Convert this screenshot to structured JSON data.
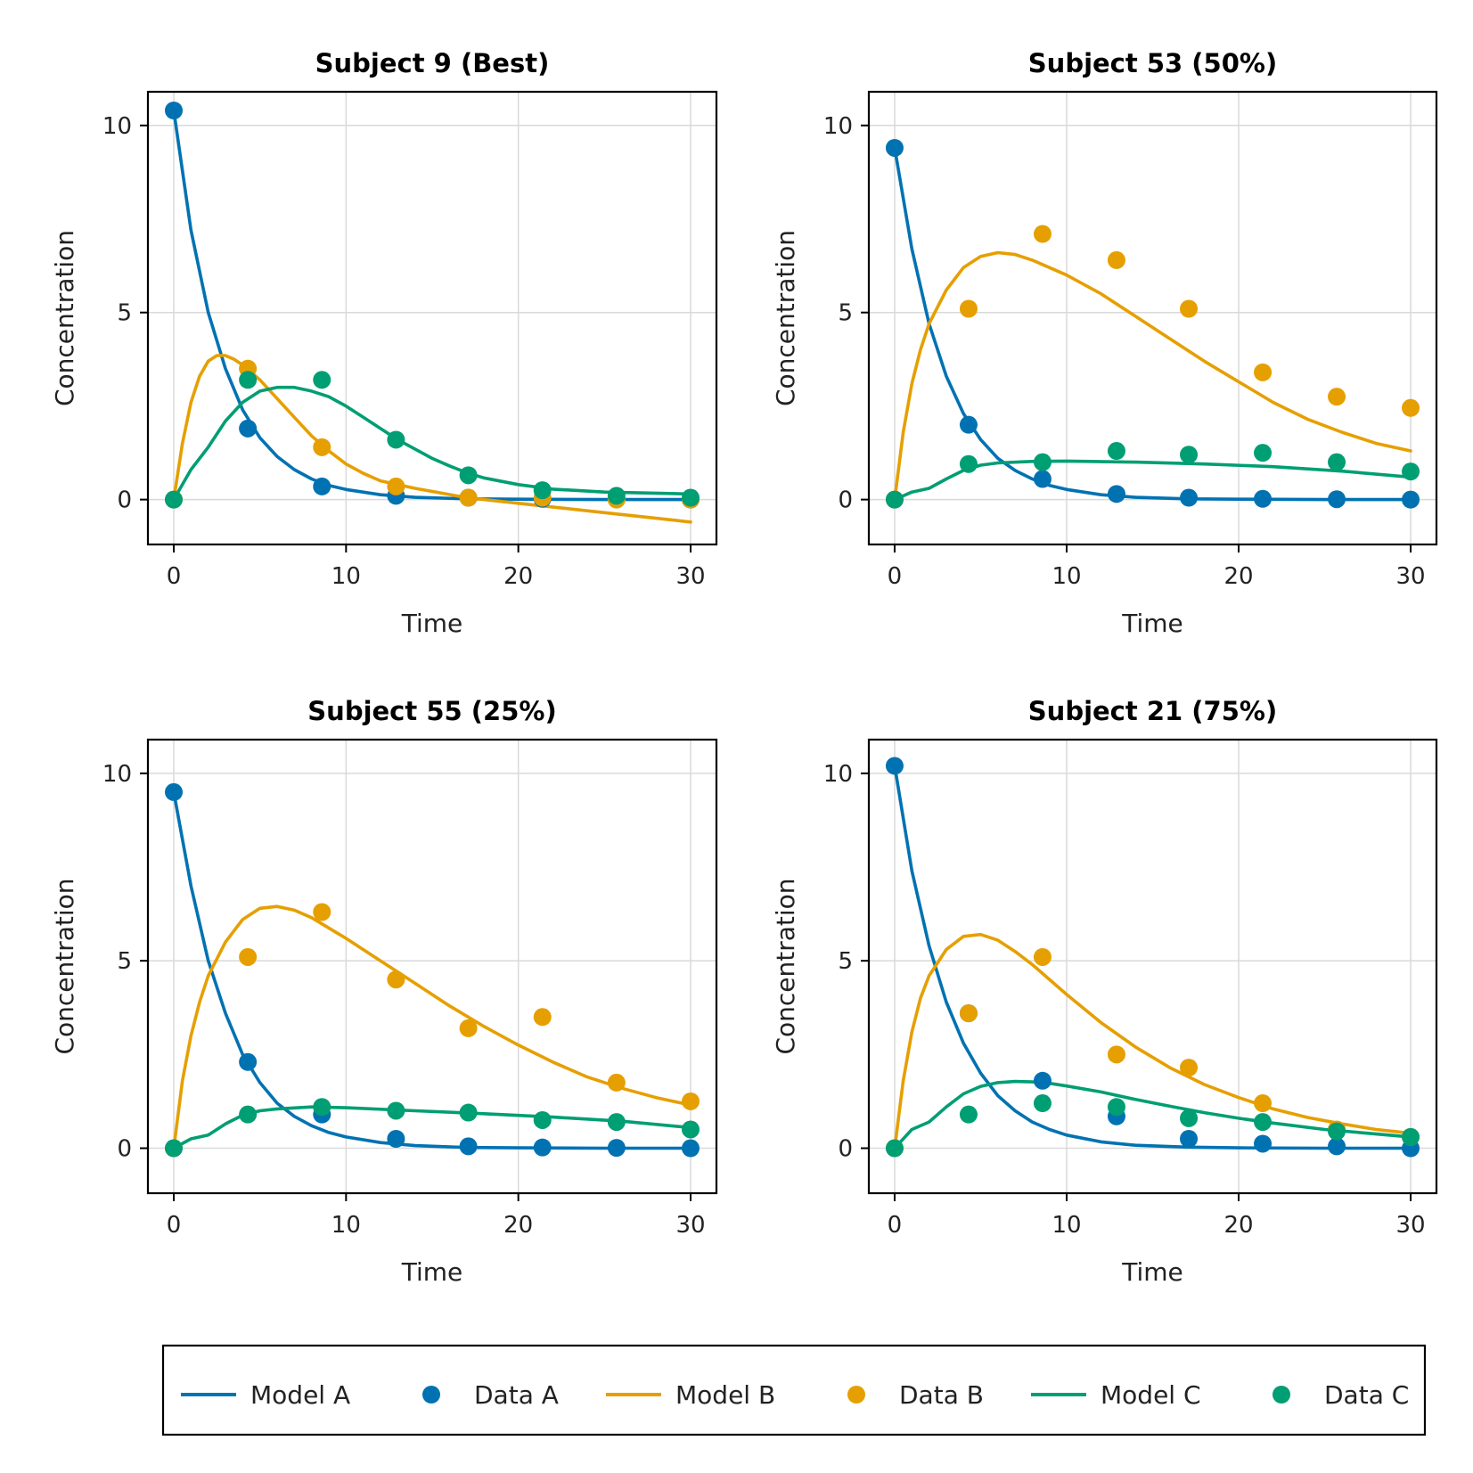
{
  "colors": {
    "A": "#0072B2",
    "B": "#E69F00",
    "C": "#009E73",
    "grid": "#d9d9d9",
    "frame": "#000000"
  },
  "legend": {
    "placement": "bottom",
    "items": [
      {
        "label": "Model A",
        "kind": "line",
        "color": "#0072B2"
      },
      {
        "label": "Data A",
        "kind": "marker",
        "color": "#0072B2"
      },
      {
        "label": "Model B",
        "kind": "line",
        "color": "#E69F00"
      },
      {
        "label": "Data B",
        "kind": "marker",
        "color": "#E69F00"
      },
      {
        "label": "Model C",
        "kind": "line",
        "color": "#009E73"
      },
      {
        "label": "Data C",
        "kind": "marker",
        "color": "#009E73"
      }
    ]
  },
  "chart_data": [
    {
      "type": "line",
      "title": "Subject 9 (Best)",
      "xlabel": "Time",
      "ylabel": "Concentration",
      "xlim": [
        -1.5,
        31.5
      ],
      "ylim": [
        -1.2,
        10.9
      ],
      "xticks": [
        0,
        10,
        20,
        30
      ],
      "yticks": [
        0,
        5,
        10
      ],
      "grid": true,
      "data_x": [
        0,
        4.3,
        8.6,
        12.9,
        17.1,
        21.4,
        25.7,
        30
      ],
      "series": [
        {
          "name": "Model A",
          "kind": "line",
          "color": "#0072B2",
          "x": [
            0,
            1,
            2,
            3,
            4,
            5,
            6,
            7,
            8,
            9,
            10,
            12,
            14,
            17,
            20,
            25,
            30
          ],
          "y": [
            10.4,
            7.2,
            5.0,
            3.5,
            2.4,
            1.65,
            1.15,
            0.8,
            0.55,
            0.38,
            0.27,
            0.13,
            0.06,
            0.02,
            0.01,
            0.0,
            0.0
          ]
        },
        {
          "name": "Data A",
          "kind": "scatter",
          "color": "#0072B2",
          "y": [
            10.4,
            1.9,
            0.35,
            0.1,
            0.05,
            0.02,
            0.01,
            0.0
          ]
        },
        {
          "name": "Model B",
          "kind": "line",
          "color": "#E69F00",
          "x": [
            0,
            0.5,
            1,
            1.5,
            2,
            2.5,
            3,
            3.5,
            4,
            5,
            6,
            7,
            8,
            9,
            10,
            11,
            12,
            14,
            17,
            20,
            25,
            30
          ],
          "y": [
            0,
            1.5,
            2.6,
            3.3,
            3.7,
            3.85,
            3.85,
            3.75,
            3.6,
            3.2,
            2.7,
            2.2,
            1.7,
            1.3,
            0.95,
            0.7,
            0.5,
            0.3,
            0.05,
            -0.1,
            -0.35,
            -0.6
          ]
        },
        {
          "name": "Data B",
          "kind": "scatter",
          "color": "#E69F00",
          "y": [
            0,
            3.5,
            1.4,
            0.35,
            0.05,
            0.05,
            0.0,
            0.0
          ]
        },
        {
          "name": "Model C",
          "kind": "line",
          "color": "#009E73",
          "x": [
            0,
            1,
            2,
            3,
            4,
            5,
            6,
            7,
            8,
            9,
            10,
            11,
            12,
            13,
            14,
            15,
            16,
            17,
            18,
            20,
            22,
            25,
            30
          ],
          "y": [
            0,
            0.8,
            1.4,
            2.1,
            2.6,
            2.9,
            3.0,
            3.0,
            2.9,
            2.75,
            2.5,
            2.2,
            1.9,
            1.6,
            1.35,
            1.1,
            0.9,
            0.72,
            0.58,
            0.4,
            0.28,
            0.2,
            0.15
          ]
        },
        {
          "name": "Data C",
          "kind": "scatter",
          "color": "#009E73",
          "y": [
            0,
            3.2,
            3.2,
            1.6,
            0.65,
            0.25,
            0.1,
            0.05
          ]
        }
      ]
    },
    {
      "type": "line",
      "title": "Subject 53 (50%)",
      "xlabel": "Time",
      "ylabel": "Concentration",
      "xlim": [
        -1.5,
        31.5
      ],
      "ylim": [
        -1.2,
        10.9
      ],
      "xticks": [
        0,
        10,
        20,
        30
      ],
      "yticks": [
        0,
        5,
        10
      ],
      "grid": true,
      "data_x": [
        0,
        4.3,
        8.6,
        12.9,
        17.1,
        21.4,
        25.7,
        30
      ],
      "series": [
        {
          "name": "Model A",
          "kind": "line",
          "color": "#0072B2",
          "x": [
            0,
            1,
            2,
            3,
            4,
            5,
            6,
            7,
            8,
            9,
            10,
            12,
            14,
            17,
            20,
            25,
            30
          ],
          "y": [
            9.4,
            6.7,
            4.7,
            3.3,
            2.3,
            1.6,
            1.1,
            0.78,
            0.55,
            0.38,
            0.27,
            0.13,
            0.06,
            0.02,
            0.01,
            0.0,
            0.0
          ]
        },
        {
          "name": "Data A",
          "kind": "scatter",
          "color": "#0072B2",
          "y": [
            9.4,
            2.0,
            0.55,
            0.15,
            0.05,
            0.02,
            0.01,
            0.0
          ]
        },
        {
          "name": "Model B",
          "kind": "line",
          "color": "#E69F00",
          "x": [
            0,
            0.5,
            1,
            1.5,
            2,
            3,
            4,
            5,
            6,
            7,
            8,
            10,
            12,
            14,
            16,
            18,
            20,
            22,
            24,
            26,
            28,
            30
          ],
          "y": [
            0,
            1.8,
            3.1,
            4.0,
            4.7,
            5.6,
            6.2,
            6.5,
            6.6,
            6.55,
            6.4,
            6.0,
            5.5,
            4.9,
            4.3,
            3.7,
            3.15,
            2.6,
            2.15,
            1.8,
            1.5,
            1.3
          ]
        },
        {
          "name": "Data B",
          "kind": "scatter",
          "color": "#E69F00",
          "y": [
            0,
            5.1,
            7.1,
            6.4,
            5.1,
            3.4,
            2.75,
            2.45
          ]
        },
        {
          "name": "Model C",
          "kind": "line",
          "color": "#009E73",
          "x": [
            0,
            1,
            2,
            3,
            4,
            5,
            6,
            8,
            10,
            14,
            18,
            22,
            26,
            30
          ],
          "y": [
            0,
            0.2,
            0.3,
            0.55,
            0.78,
            0.92,
            0.98,
            1.02,
            1.03,
            1.0,
            0.95,
            0.88,
            0.76,
            0.6
          ]
        },
        {
          "name": "Data C",
          "kind": "scatter",
          "color": "#009E73",
          "y": [
            0,
            0.95,
            1.0,
            1.3,
            1.2,
            1.25,
            1.0,
            0.75
          ]
        }
      ]
    },
    {
      "type": "line",
      "title": "Subject 55 (25%)",
      "xlabel": "Time",
      "ylabel": "Concentration",
      "xlim": [
        -1.5,
        31.5
      ],
      "ylim": [
        -1.2,
        10.9
      ],
      "xticks": [
        0,
        10,
        20,
        30
      ],
      "yticks": [
        0,
        5,
        10
      ],
      "grid": true,
      "data_x": [
        0,
        4.3,
        8.6,
        12.9,
        17.1,
        21.4,
        25.7,
        30
      ],
      "series": [
        {
          "name": "Model A",
          "kind": "line",
          "color": "#0072B2",
          "x": [
            0,
            1,
            2,
            3,
            4,
            5,
            6,
            7,
            8,
            9,
            10,
            12,
            14,
            17,
            20,
            25,
            30
          ],
          "y": [
            9.5,
            7.0,
            5.0,
            3.6,
            2.5,
            1.75,
            1.2,
            0.85,
            0.6,
            0.42,
            0.3,
            0.15,
            0.07,
            0.02,
            0.01,
            0.0,
            0.0
          ]
        },
        {
          "name": "Data A",
          "kind": "scatter",
          "color": "#0072B2",
          "y": [
            9.5,
            2.3,
            0.9,
            0.25,
            0.05,
            0.02,
            0.01,
            0.0
          ]
        },
        {
          "name": "Model B",
          "kind": "line",
          "color": "#E69F00",
          "x": [
            0,
            0.5,
            1,
            1.5,
            2,
            3,
            4,
            5,
            6,
            7,
            8,
            10,
            12,
            14,
            16,
            18,
            20,
            22,
            24,
            26,
            28,
            30
          ],
          "y": [
            0,
            1.8,
            3.0,
            3.9,
            4.6,
            5.5,
            6.1,
            6.4,
            6.45,
            6.35,
            6.15,
            5.6,
            5.0,
            4.4,
            3.8,
            3.25,
            2.75,
            2.3,
            1.9,
            1.6,
            1.35,
            1.15
          ]
        },
        {
          "name": "Data B",
          "kind": "scatter",
          "color": "#E69F00",
          "y": [
            0,
            5.1,
            6.3,
            4.5,
            3.2,
            3.5,
            1.75,
            1.25
          ]
        },
        {
          "name": "Model C",
          "kind": "line",
          "color": "#009E73",
          "x": [
            0,
            1,
            2,
            3,
            4,
            5,
            6,
            8,
            10,
            14,
            18,
            22,
            26,
            30
          ],
          "y": [
            0,
            0.25,
            0.35,
            0.65,
            0.88,
            1.0,
            1.05,
            1.1,
            1.08,
            1.0,
            0.92,
            0.83,
            0.72,
            0.55
          ]
        },
        {
          "name": "Data C",
          "kind": "scatter",
          "color": "#009E73",
          "y": [
            0,
            0.9,
            1.1,
            1.0,
            0.95,
            0.75,
            0.7,
            0.5
          ]
        }
      ]
    },
    {
      "type": "line",
      "title": "Subject 21 (75%)",
      "xlabel": "Time",
      "ylabel": "Concentration",
      "xlim": [
        -1.5,
        31.5
      ],
      "ylim": [
        -1.2,
        10.9
      ],
      "xticks": [
        0,
        10,
        20,
        30
      ],
      "yticks": [
        0,
        5,
        10
      ],
      "grid": true,
      "data_x": [
        0,
        4.3,
        8.6,
        12.9,
        17.1,
        21.4,
        25.7,
        30
      ],
      "series": [
        {
          "name": "Model A",
          "kind": "line",
          "color": "#0072B2",
          "x": [
            0,
            1,
            2,
            3,
            4,
            5,
            6,
            7,
            8,
            9,
            10,
            12,
            14,
            17,
            20,
            25,
            30
          ],
          "y": [
            10.2,
            7.4,
            5.4,
            3.9,
            2.8,
            2.0,
            1.4,
            1.0,
            0.7,
            0.5,
            0.35,
            0.17,
            0.08,
            0.03,
            0.01,
            0.0,
            0.0
          ]
        },
        {
          "name": "Data A",
          "kind": "scatter",
          "color": "#0072B2",
          "y": [
            10.2,
            3.6,
            1.8,
            0.85,
            0.25,
            0.12,
            0.05,
            0.0
          ]
        },
        {
          "name": "Model B",
          "kind": "line",
          "color": "#E69F00",
          "x": [
            0,
            0.5,
            1,
            1.5,
            2,
            3,
            4,
            5,
            6,
            7,
            8,
            10,
            12,
            14,
            16,
            18,
            20,
            22,
            24,
            26,
            28,
            30
          ],
          "y": [
            0,
            1.8,
            3.1,
            4.0,
            4.6,
            5.3,
            5.65,
            5.7,
            5.55,
            5.25,
            4.9,
            4.1,
            3.35,
            2.7,
            2.15,
            1.7,
            1.35,
            1.05,
            0.82,
            0.65,
            0.5,
            0.4
          ]
        },
        {
          "name": "Data B",
          "kind": "scatter",
          "color": "#E69F00",
          "y": [
            0,
            3.6,
            5.1,
            2.5,
            2.15,
            1.2,
            0.5,
            0.3
          ]
        },
        {
          "name": "Model C",
          "kind": "line",
          "color": "#009E73",
          "x": [
            0,
            1,
            2,
            3,
            4,
            5,
            6,
            7,
            8,
            9,
            10,
            12,
            14,
            16,
            18,
            20,
            22,
            25,
            30
          ],
          "y": [
            0,
            0.5,
            0.7,
            1.1,
            1.45,
            1.65,
            1.75,
            1.78,
            1.77,
            1.73,
            1.66,
            1.5,
            1.3,
            1.12,
            0.95,
            0.8,
            0.67,
            0.5,
            0.3
          ]
        },
        {
          "name": "Data C",
          "kind": "scatter",
          "color": "#009E73",
          "y": [
            0,
            0.9,
            1.2,
            1.1,
            0.8,
            0.7,
            0.45,
            0.3
          ]
        }
      ]
    }
  ]
}
